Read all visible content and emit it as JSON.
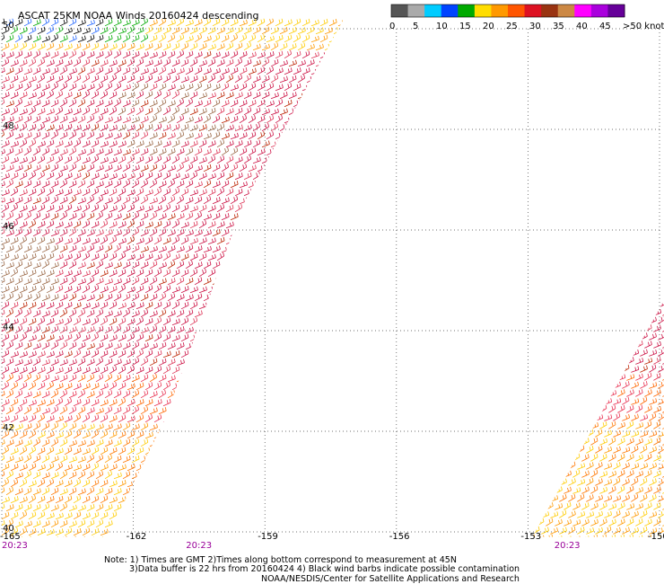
{
  "title": "ASCAT 25KM NOAA Winds 20160424 descending",
  "legend": {
    "ticks": [
      "0",
      "5",
      "10",
      "15",
      "20",
      "25",
      "30",
      "35",
      "40",
      "45",
      ">50 knots"
    ],
    "colors": [
      "#555555",
      "#aaaaaa",
      "#00ccff",
      "#0044ff",
      "#00aa00",
      "#ffdd00",
      "#ff9900",
      "#ff5500",
      "#dd1122",
      "#993311",
      "#cc8844",
      "#ff00ff",
      "#aa00dd",
      "#660099"
    ]
  },
  "chart_data": {
    "type": "map",
    "x_ticks": [
      "-165",
      "-162",
      "-159",
      "-156",
      "-153",
      "-150"
    ],
    "y_ticks": [
      "40",
      "42",
      "44",
      "46",
      "48",
      "50"
    ],
    "xlim": [
      -165,
      -150
    ],
    "ylim": [
      40,
      50
    ],
    "time_labels": [
      {
        "lon": -165,
        "text": "20:23"
      },
      {
        "lon": -160.8,
        "text": "20:23"
      },
      {
        "lon": -152.4,
        "text": "20:23"
      }
    ],
    "swaths": [
      {
        "name": "west",
        "polygon_lonlat": [
          [
            -165,
            50.2
          ],
          [
            -157.2,
            50.2
          ],
          [
            -159.5,
            46.5
          ],
          [
            -161.3,
            42.2
          ],
          [
            -162.6,
            39.9
          ],
          [
            -165,
            39.9
          ]
        ]
      },
      {
        "name": "east",
        "polygon_lonlat": [
          [
            -149.9,
            44.6
          ],
          [
            -149.9,
            39.9
          ],
          [
            -152.9,
            39.9
          ]
        ]
      }
    ]
  },
  "notes": {
    "line1": "Note: 1) Times are GMT 2)Times along bottom correspond to measurement at 45N",
    "line2": "3)Data buffer is 22 hrs from 20160424 4) Black wind barbs indicate possible contamination",
    "line3": "NOAA/NESDIS/Center for Satellite Applications and Research"
  }
}
